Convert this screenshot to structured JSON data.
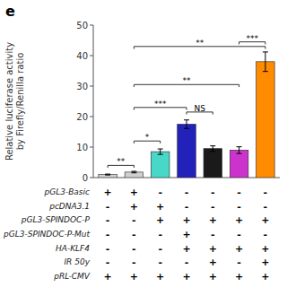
{
  "chart_data": {
    "type": "bar",
    "title": "e",
    "ylabel": "Relative luciferase activity\nby Firefly/Renilla ratio",
    "categories": [
      null,
      null,
      null,
      null,
      null,
      null,
      null
    ],
    "values": [
      1.0,
      1.8,
      8.5,
      17.5,
      9.5,
      9.0,
      38.0
    ],
    "errors": [
      0.15,
      0.25,
      0.9,
      1.4,
      0.9,
      1.1,
      3.2
    ],
    "colors": [
      "#d0d0d0",
      "#d0d0d0",
      "#48d8c8",
      "#2222bb",
      "#1a1a1a",
      "#cc33cc",
      "#ff8c00"
    ],
    "ylim": [
      0,
      50
    ],
    "yticks": [
      0,
      10,
      20,
      30,
      40,
      50
    ],
    "grid": false,
    "tick_labels": "y",
    "conditions": [
      {
        "name": "pGL3-Basic",
        "values": [
          "+",
          "+",
          "-",
          "-",
          "-",
          "-",
          "-"
        ]
      },
      {
        "name": "pcDNA3.1",
        "values": [
          "-",
          "+",
          "+",
          "-",
          "-",
          "-",
          "-"
        ]
      },
      {
        "name": "pGL3-SPINDOC-P",
        "values": [
          "-",
          "-",
          "+",
          "+",
          "+",
          "+",
          "+"
        ]
      },
      {
        "name": "pGL3-SPINDOC-P-Mut",
        "values": [
          "-",
          "-",
          "-",
          "+",
          "-",
          "-",
          "-"
        ]
      },
      {
        "name": "HA-KLF4",
        "values": [
          "-",
          "-",
          "-",
          "+",
          "+",
          "+",
          "+"
        ]
      },
      {
        "name": "IR 50y",
        "values": [
          "-",
          "-",
          "-",
          "-",
          "+",
          "-",
          "+"
        ]
      },
      {
        "name": "pRL-CMV",
        "values": [
          "+",
          "+",
          "+",
          "+",
          "+",
          "+",
          "+"
        ]
      }
    ],
    "significance": [
      {
        "bars": [
          0,
          1
        ],
        "label": "**",
        "height": 4.0
      },
      {
        "bars": [
          1,
          2
        ],
        "label": "*",
        "height": 12.0
      },
      {
        "bars": [
          1,
          3
        ],
        "label": "***",
        "height": 23.0
      },
      {
        "bars": [
          3,
          4
        ],
        "label": "NS",
        "height": 21.5
      },
      {
        "bars": [
          1,
          5
        ],
        "label": "**",
        "height": 30.5
      },
      {
        "bars": [
          1,
          6
        ],
        "label": "**",
        "height": 43.0
      },
      {
        "bars": [
          5,
          6
        ],
        "label": "***",
        "height": 44.5
      }
    ]
  }
}
